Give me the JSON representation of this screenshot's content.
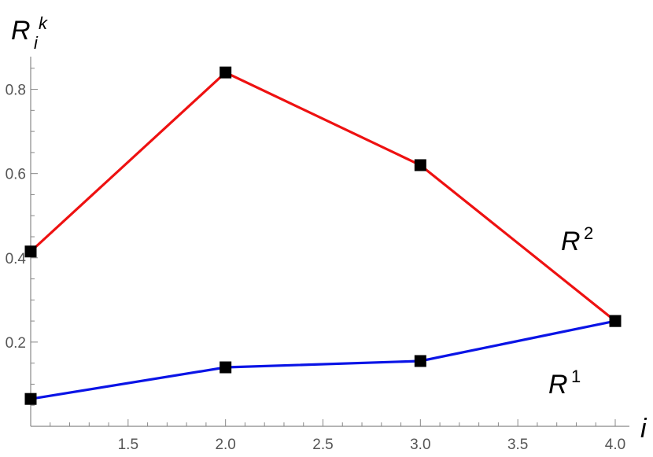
{
  "chart_data": {
    "type": "line",
    "xlabel": "i",
    "ylabel": {
      "base": "R",
      "sup": "k",
      "sub": "i"
    },
    "xlim": [
      1.0,
      4.0
    ],
    "ylim": [
      0.0,
      0.9
    ],
    "xticks": [
      1.5,
      2.0,
      2.5,
      3.0,
      3.5,
      4.0
    ],
    "xtick_labels": [
      "1.5",
      "2.0",
      "2.5",
      "3.0",
      "3.5",
      "4.0"
    ],
    "yticks": [
      0.2,
      0.4,
      0.6,
      0.8
    ],
    "ytick_labels": [
      "0.2",
      "0.4",
      "0.6",
      "0.8"
    ],
    "grid": false,
    "marker": "square",
    "x": [
      1,
      2,
      3,
      4
    ],
    "series": [
      {
        "label_base": "R",
        "label_sup": "1",
        "color": "#0a14e6",
        "values": [
          0.065,
          0.14,
          0.155,
          0.25
        ]
      },
      {
        "label_base": "R",
        "label_sup": "2",
        "color": "#ee1111",
        "values": [
          0.415,
          0.84,
          0.62,
          0.25
        ]
      }
    ]
  }
}
